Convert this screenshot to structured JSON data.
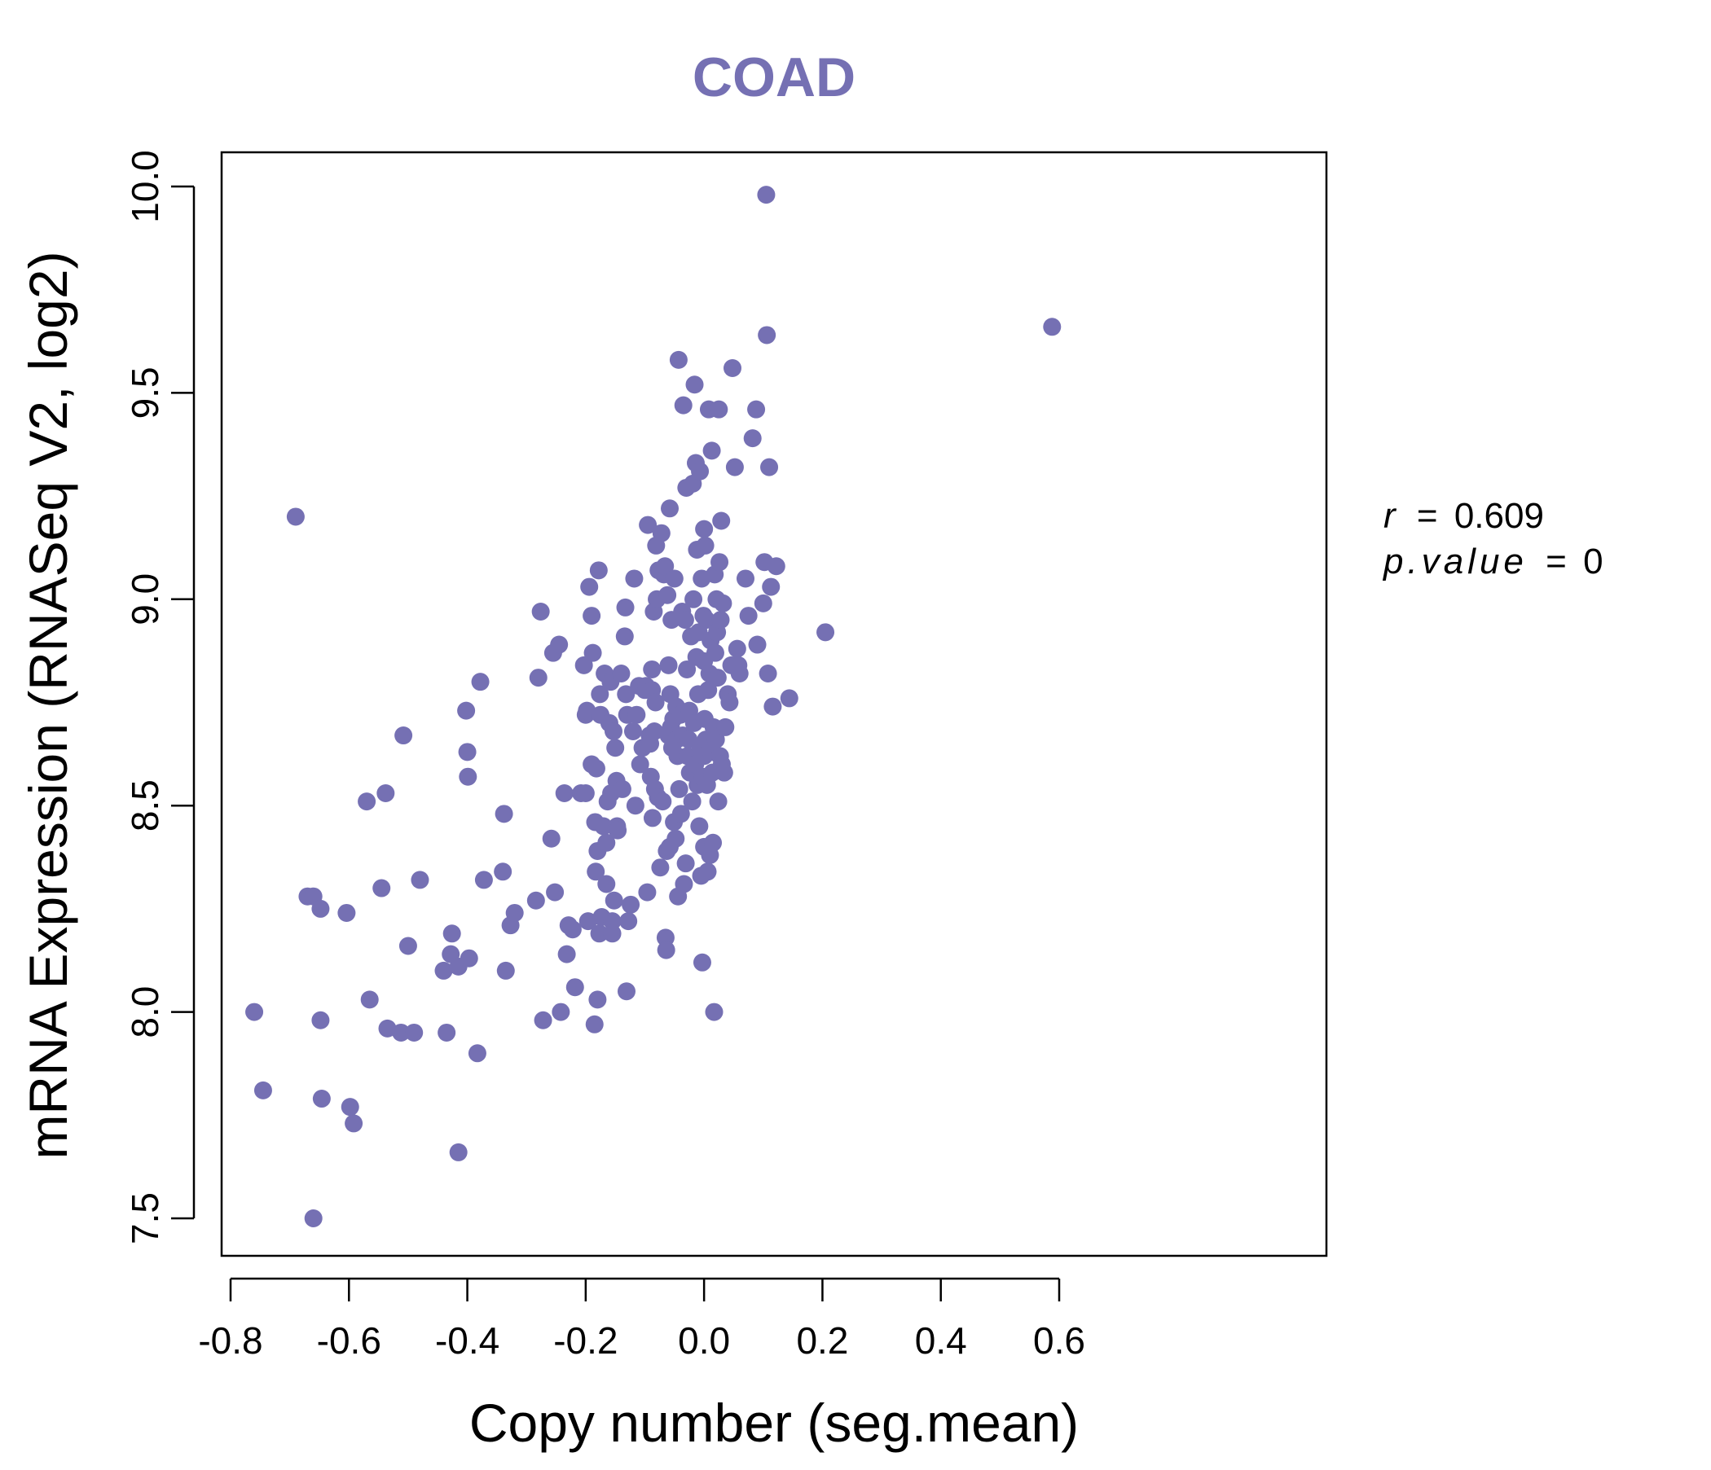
{
  "chart_data": {
    "type": "scatter",
    "title": "COAD",
    "xlabel": "Copy number (seg.mean)",
    "ylabel": "mRNA Expression (RNASeq V2, log2)",
    "xlim": [
      -0.8,
      0.6
    ],
    "ylim": [
      7.5,
      10.0
    ],
    "xticks": [
      -0.8,
      -0.6,
      -0.4,
      -0.2,
      0.0,
      0.2,
      0.4,
      0.6
    ],
    "xtick_labels": [
      "-0.8",
      "-0.6",
      "-0.4",
      "-0.2",
      "0.0",
      "0.2",
      "0.4",
      "0.6"
    ],
    "yticks": [
      7.5,
      8.0,
      8.5,
      9.0,
      9.5,
      10.0
    ],
    "ytick_labels": [
      "7.5",
      "8.0",
      "8.5",
      "9.0",
      "9.5",
      "10.0"
    ],
    "grid": false,
    "point_color": "#7570b3",
    "title_color": "#7570b3",
    "stats": {
      "r_label": "r",
      "r_value": "0.609",
      "p_label": "p.value",
      "p_value": "0"
    },
    "series": [
      {
        "points": [
          [
            -0.76,
            8.0
          ],
          [
            -0.745,
            7.81
          ],
          [
            -0.69,
            9.2
          ],
          [
            -0.67,
            8.28
          ],
          [
            -0.66,
            8.28
          ],
          [
            -0.66,
            7.5
          ],
          [
            -0.648,
            8.25
          ],
          [
            -0.648,
            7.98
          ],
          [
            -0.646,
            7.79
          ],
          [
            -0.604,
            8.24
          ],
          [
            -0.598,
            7.77
          ],
          [
            -0.592,
            7.73
          ],
          [
            -0.57,
            8.51
          ],
          [
            -0.565,
            8.03
          ],
          [
            -0.545,
            8.3
          ],
          [
            -0.538,
            8.53
          ],
          [
            -0.535,
            7.96
          ],
          [
            -0.512,
            7.95
          ],
          [
            -0.508,
            8.67
          ],
          [
            -0.5,
            8.16
          ],
          [
            -0.49,
            7.95
          ],
          [
            -0.48,
            8.32
          ],
          [
            -0.44,
            8.1
          ],
          [
            -0.435,
            7.95
          ],
          [
            -0.428,
            8.14
          ],
          [
            -0.426,
            8.19
          ],
          [
            -0.415,
            8.11
          ],
          [
            -0.415,
            7.66
          ],
          [
            -0.402,
            8.73
          ],
          [
            -0.4,
            8.63
          ],
          [
            -0.399,
            8.57
          ],
          [
            -0.397,
            8.13
          ],
          [
            -0.383,
            7.9
          ],
          [
            -0.378,
            8.8
          ],
          [
            -0.372,
            8.32
          ],
          [
            -0.34,
            8.34
          ],
          [
            -0.338,
            8.48
          ],
          [
            -0.335,
            8.1
          ],
          [
            -0.327,
            8.21
          ],
          [
            -0.32,
            8.24
          ],
          [
            -0.284,
            8.27
          ],
          [
            -0.28,
            8.81
          ],
          [
            -0.276,
            8.97
          ],
          [
            -0.272,
            7.98
          ],
          [
            -0.258,
            8.42
          ],
          [
            -0.255,
            8.87
          ],
          [
            -0.252,
            8.29
          ],
          [
            -0.245,
            8.89
          ],
          [
            -0.242,
            8.0
          ],
          [
            -0.236,
            8.53
          ],
          [
            -0.232,
            8.14
          ],
          [
            -0.229,
            8.21
          ],
          [
            -0.222,
            8.2
          ],
          [
            -0.218,
            8.06
          ],
          [
            -0.208,
            8.53
          ],
          [
            -0.203,
            8.84
          ],
          [
            -0.2,
            8.72
          ],
          [
            -0.2,
            8.53
          ],
          [
            -0.198,
            8.73
          ],
          [
            -0.196,
            8.22
          ],
          [
            -0.194,
            9.03
          ],
          [
            -0.19,
            8.96
          ],
          [
            -0.19,
            8.6
          ],
          [
            -0.188,
            8.87
          ],
          [
            -0.185,
            7.97
          ],
          [
            -0.184,
            8.46
          ],
          [
            -0.183,
            8.34
          ],
          [
            -0.182,
            8.59
          ],
          [
            -0.18,
            8.39
          ],
          [
            -0.18,
            8.03
          ],
          [
            -0.178,
            9.07
          ],
          [
            -0.177,
            8.19
          ],
          [
            -0.176,
            8.77
          ],
          [
            -0.175,
            8.72
          ],
          [
            -0.173,
            8.23
          ],
          [
            -0.17,
            8.45
          ],
          [
            -0.168,
            8.82
          ],
          [
            -0.165,
            8.41
          ],
          [
            -0.165,
            8.31
          ],
          [
            -0.163,
            8.51
          ],
          [
            -0.16,
            8.7
          ],
          [
            -0.158,
            8.8
          ],
          [
            -0.157,
            8.53
          ],
          [
            -0.155,
            8.22
          ],
          [
            -0.155,
            8.19
          ],
          [
            -0.153,
            8.68
          ],
          [
            -0.152,
            8.27
          ],
          [
            -0.15,
            8.64
          ],
          [
            -0.148,
            8.56
          ],
          [
            -0.147,
            8.45
          ],
          [
            -0.146,
            8.44
          ],
          [
            -0.14,
            8.82
          ],
          [
            -0.138,
            8.54
          ],
          [
            -0.134,
            8.91
          ],
          [
            -0.133,
            8.98
          ],
          [
            -0.132,
            8.77
          ],
          [
            -0.131,
            8.05
          ],
          [
            -0.13,
            8.72
          ],
          [
            -0.128,
            8.22
          ],
          [
            -0.124,
            8.26
          ],
          [
            -0.12,
            8.68
          ],
          [
            -0.118,
            9.05
          ],
          [
            -0.116,
            8.5
          ],
          [
            -0.114,
            8.72
          ],
          [
            -0.11,
            8.79
          ],
          [
            -0.108,
            8.6
          ],
          [
            -0.104,
            8.64
          ],
          [
            -0.1,
            8.78
          ],
          [
            -0.098,
            8.79
          ],
          [
            -0.096,
            8.29
          ],
          [
            -0.095,
            9.18
          ],
          [
            -0.092,
            8.67
          ],
          [
            -0.091,
            8.65
          ],
          [
            -0.09,
            8.57
          ],
          [
            -0.088,
            8.83
          ],
          [
            -0.088,
            8.78
          ],
          [
            -0.087,
            8.47
          ],
          [
            -0.085,
            8.97
          ],
          [
            -0.084,
            8.68
          ],
          [
            -0.083,
            8.54
          ],
          [
            -0.082,
            8.75
          ],
          [
            -0.081,
            9.13
          ],
          [
            -0.08,
            9.0
          ],
          [
            -0.078,
            8.52
          ],
          [
            -0.077,
            9.07
          ],
          [
            -0.074,
            8.35
          ],
          [
            -0.072,
            9.16
          ],
          [
            -0.07,
            8.51
          ],
          [
            -0.068,
            9.06
          ],
          [
            -0.066,
            9.08
          ],
          [
            -0.065,
            8.18
          ],
          [
            -0.064,
            8.15
          ],
          [
            -0.063,
            8.39
          ],
          [
            -0.062,
            9.01
          ],
          [
            -0.06,
            8.84
          ],
          [
            -0.06,
            8.67
          ],
          [
            -0.058,
            9.22
          ],
          [
            -0.058,
            8.4
          ],
          [
            -0.057,
            8.77
          ],
          [
            -0.056,
            8.69
          ],
          [
            -0.055,
            8.95
          ],
          [
            -0.054,
            8.64
          ],
          [
            -0.052,
            8.71
          ],
          [
            -0.051,
            8.46
          ],
          [
            -0.05,
            9.05
          ],
          [
            -0.048,
            8.42
          ],
          [
            -0.047,
            8.74
          ],
          [
            -0.046,
            8.66
          ],
          [
            -0.045,
            8.62
          ],
          [
            -0.044,
            8.28
          ],
          [
            -0.043,
            9.58
          ],
          [
            -0.042,
            8.54
          ],
          [
            -0.04,
            8.72
          ],
          [
            -0.039,
            8.48
          ],
          [
            -0.037,
            8.97
          ],
          [
            -0.036,
            8.67
          ],
          [
            -0.035,
            9.47
          ],
          [
            -0.034,
            8.31
          ],
          [
            -0.032,
            8.95
          ],
          [
            -0.031,
            8.36
          ],
          [
            -0.03,
            9.27
          ],
          [
            -0.029,
            8.83
          ],
          [
            -0.028,
            8.62
          ],
          [
            -0.026,
            8.66
          ],
          [
            -0.025,
            8.73
          ],
          [
            -0.024,
            8.58
          ],
          [
            -0.022,
            8.91
          ],
          [
            -0.02,
            8.51
          ],
          [
            -0.019,
            9.28
          ],
          [
            -0.018,
            9.0
          ],
          [
            -0.017,
            8.7
          ],
          [
            -0.016,
            9.52
          ],
          [
            -0.015,
            8.6
          ],
          [
            -0.014,
            9.33
          ],
          [
            -0.013,
            8.86
          ],
          [
            -0.012,
            9.12
          ],
          [
            -0.011,
            8.55
          ],
          [
            -0.01,
            8.77
          ],
          [
            -0.009,
            8.92
          ],
          [
            -0.008,
            8.45
          ],
          [
            -0.007,
            9.31
          ],
          [
            -0.006,
            8.64
          ],
          [
            -0.005,
            8.33
          ],
          [
            -0.004,
            9.05
          ],
          [
            -0.003,
            8.12
          ],
          [
            -0.002,
            8.57
          ],
          [
            -0.001,
            8.96
          ],
          [
            0.0,
            9.17
          ],
          [
            0.0,
            8.85
          ],
          [
            0.0,
            8.62
          ],
          [
            0.0,
            8.4
          ],
          [
            0.001,
            8.71
          ],
          [
            0.002,
            9.13
          ],
          [
            0.003,
            8.66
          ],
          [
            0.004,
            8.95
          ],
          [
            0.005,
            8.55
          ],
          [
            0.006,
            8.34
          ],
          [
            0.007,
            8.78
          ],
          [
            0.008,
            9.46
          ],
          [
            0.009,
            8.82
          ],
          [
            0.01,
            8.38
          ],
          [
            0.011,
            8.9
          ],
          [
            0.012,
            8.63
          ],
          [
            0.013,
            9.36
          ],
          [
            0.014,
            8.58
          ],
          [
            0.015,
            8.41
          ],
          [
            0.016,
            8.69
          ],
          [
            0.017,
            8.0
          ],
          [
            0.018,
            9.06
          ],
          [
            0.019,
            8.87
          ],
          [
            0.02,
            8.66
          ],
          [
            0.021,
            9.0
          ],
          [
            0.022,
            8.92
          ],
          [
            0.023,
            8.81
          ],
          [
            0.024,
            8.51
          ],
          [
            0.025,
            9.46
          ],
          [
            0.026,
            9.09
          ],
          [
            0.027,
            8.62
          ],
          [
            0.028,
            8.95
          ],
          [
            0.029,
            9.19
          ],
          [
            0.03,
            8.6
          ],
          [
            0.032,
            8.99
          ],
          [
            0.034,
            8.58
          ],
          [
            0.036,
            8.69
          ],
          [
            0.04,
            8.77
          ],
          [
            0.043,
            8.75
          ],
          [
            0.046,
            8.84
          ],
          [
            0.048,
            9.56
          ],
          [
            0.052,
            9.32
          ],
          [
            0.056,
            8.88
          ],
          [
            0.058,
            8.84
          ],
          [
            0.06,
            8.82
          ],
          [
            0.07,
            9.05
          ],
          [
            0.075,
            8.96
          ],
          [
            0.082,
            9.39
          ],
          [
            0.088,
            9.46
          ],
          [
            0.09,
            8.89
          ],
          [
            0.1,
            8.99
          ],
          [
            0.102,
            9.09
          ],
          [
            0.105,
            9.98
          ],
          [
            0.106,
            9.64
          ],
          [
            0.108,
            8.82
          ],
          [
            0.11,
            9.32
          ],
          [
            0.113,
            9.03
          ],
          [
            0.116,
            8.74
          ],
          [
            0.122,
            9.08
          ],
          [
            0.144,
            8.76
          ],
          [
            0.205,
            8.92
          ],
          [
            0.588,
            9.66
          ]
        ]
      }
    ]
  }
}
